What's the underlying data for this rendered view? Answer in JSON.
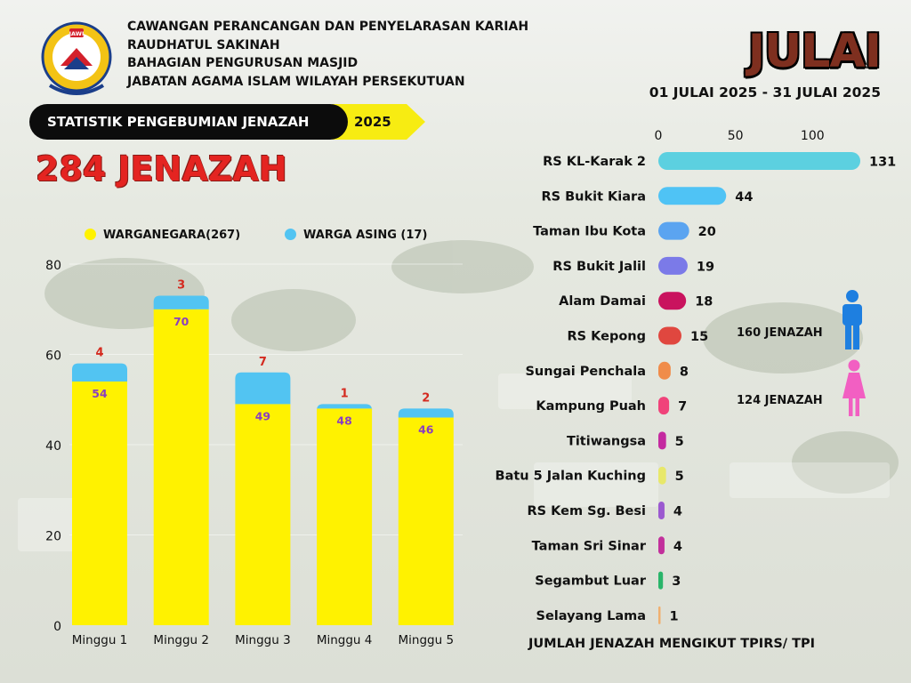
{
  "header": {
    "lines": [
      "CAWANGAN PERANCANGAN DAN PENYELARASAN KARIAH",
      "RAUDHATUL SAKINAH",
      "BAHAGIAN PENGURUSAN MASJID",
      "JABATAN AGAMA ISLAM WILAYAH PERSEKUTUAN"
    ],
    "logo_text": "JAWI",
    "month": "JULAI",
    "date_range": "01 JULAI 2025 - 31 JULAI 2025"
  },
  "banner": {
    "label": "STATISTIK PENGEBUMIAN JENAZAH",
    "year": "2025"
  },
  "total": "284 JENAZAH",
  "gender": {
    "male": "160 JENAZAH",
    "female": "124 JENAZAH",
    "male_color": "#1e7fe0",
    "female_color": "#f25fc2"
  },
  "footer_label": "JUMLAH JENAZAH MENGIKUT TPIRS/ TPI",
  "colors": {
    "yellow": "#fff200",
    "blue": "#52c4f2",
    "red_label": "#d42a1f",
    "purple_label": "#8a3fbf"
  },
  "chart_data": [
    {
      "type": "bar",
      "stacked": true,
      "categories": [
        "Minggu 1",
        "Minggu 2",
        "Minggu 3",
        "Minggu 4",
        "Minggu 5"
      ],
      "series": [
        {
          "name": "WARGANEGARA(267)",
          "values": [
            54,
            70,
            49,
            48,
            46
          ],
          "color": "#fff200"
        },
        {
          "name": "WARGA ASING (17)",
          "values": [
            4,
            3,
            7,
            1,
            2
          ],
          "color": "#52c4f2"
        }
      ],
      "yticks": [
        0,
        20,
        40,
        60,
        80
      ],
      "ylim": [
        0,
        80
      ],
      "legend": "top",
      "grid": false
    },
    {
      "type": "bar",
      "orientation": "horizontal",
      "title": "JUMLAH JENAZAH MENGIKUT TPIRS/ TPI",
      "categories": [
        "RS KL-Karak 2",
        "RS Bukit Kiara",
        "Taman Ibu Kota",
        "RS Bukit Jalil",
        "Alam Damai",
        "RS Kepong",
        "Sungai Penchala",
        "Kampung Puah",
        "Titiwangsa",
        "Batu 5 Jalan Kuching",
        "RS Kem Sg. Besi",
        "Taman Sri Sinar",
        "Segambut Luar",
        "Selayang Lama"
      ],
      "values": [
        131,
        44,
        20,
        19,
        18,
        15,
        8,
        7,
        5,
        5,
        4,
        4,
        3,
        1
      ],
      "colors": [
        "#5cd0e0",
        "#4fc3f5",
        "#5ba4f0",
        "#7b7ae8",
        "#c9135e",
        "#e0473f",
        "#f08c4a",
        "#f0437a",
        "#c42aa0",
        "#e8e86a",
        "#9b59d0",
        "#c2309c",
        "#2ab56a",
        "#f0b070"
      ],
      "xticks": [
        0,
        50,
        100
      ],
      "xlim": [
        0,
        131
      ]
    }
  ]
}
